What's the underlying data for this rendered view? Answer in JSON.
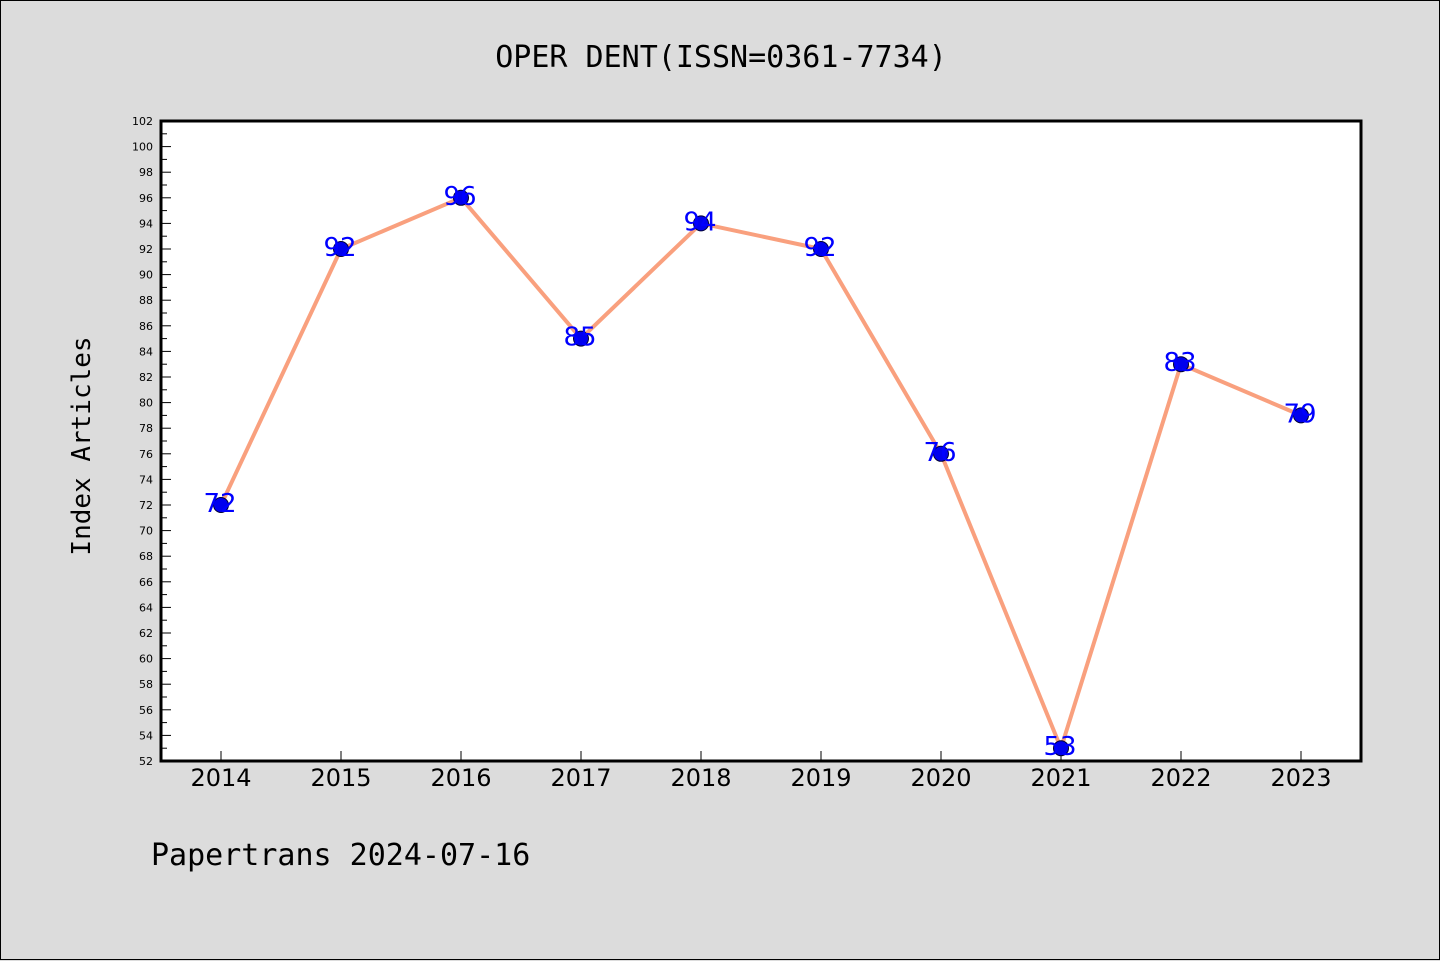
{
  "footer": {
    "text": "Papertrans 2024-07-16"
  },
  "chart_data": {
    "type": "line",
    "title": "OPER DENT(ISSN=0361-7734)",
    "xlabel": "",
    "ylabel": "Index Articles",
    "categories": [
      "2014",
      "2015",
      "2016",
      "2017",
      "2018",
      "2019",
      "2020",
      "2021",
      "2022",
      "2023"
    ],
    "values": [
      72,
      92,
      96,
      85,
      94,
      92,
      76,
      53,
      83,
      79
    ],
    "ylim": [
      52,
      102
    ],
    "ytick_step": 2,
    "grid": false,
    "legend": "none",
    "colors": {
      "line": "#f9a07e",
      "marker": "#0000ee",
      "marker_edge": "#000033",
      "data_label": "#0000ff",
      "plot_bg": "#ffffff",
      "page_bg": "#dcdcdc"
    }
  }
}
